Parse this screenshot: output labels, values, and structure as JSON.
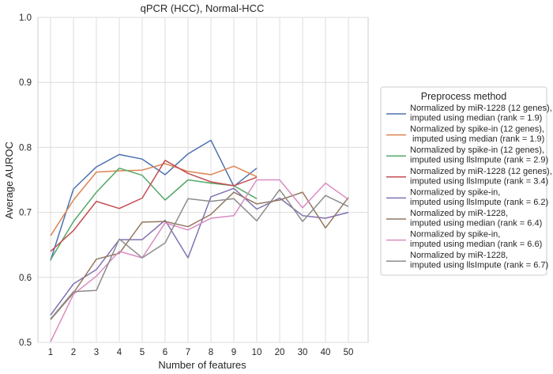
{
  "chart_data": {
    "type": "line",
    "title": "qPCR (HCC), Normal-HCC",
    "xlabel": "Number of features",
    "ylabel": "Average AUROC",
    "categories": [
      "1",
      "2",
      "3",
      "4",
      "5",
      "6",
      "7",
      "8",
      "9",
      "10",
      "20",
      "30",
      "40",
      "50"
    ],
    "ylim": [
      0.5,
      1.0
    ],
    "yticks": [
      "0.5",
      "0.6",
      "0.7",
      "0.8",
      "0.9",
      "1.0"
    ],
    "grid": true,
    "legend": {
      "title": "Preprocess method",
      "placement": "outside-right"
    },
    "series": [
      {
        "name": "Normalized by miR-1228 (12 genes),\nimputed using median (rank = 1.9)",
        "color": "#4c72b0",
        "values": [
          0.626,
          0.736,
          0.77,
          0.789,
          0.782,
          0.758,
          0.79,
          0.811,
          0.74,
          0.768,
          null,
          null,
          null,
          null
        ]
      },
      {
        "name": "Normalized by spike-in (12 genes),\n imputed using median (rank = 1.9)",
        "color": "#dd8452",
        "values": [
          0.664,
          0.719,
          0.762,
          0.764,
          0.765,
          0.775,
          0.763,
          0.758,
          0.771,
          0.755,
          null,
          null,
          null,
          null
        ]
      },
      {
        "name": "Normalized by spike-in (12 genes),\nimputed using llsImpute (rank = 2.9)",
        "color": "#55a868",
        "values": [
          0.627,
          0.686,
          0.731,
          0.768,
          0.757,
          0.719,
          0.75,
          0.745,
          0.741,
          0.721,
          null,
          null,
          null,
          null
        ]
      },
      {
        "name": "Normalized by miR-1228 (12 genes),\nimputed using llsImpute (rank = 3.4)",
        "color": "#c44e52",
        "values": [
          0.64,
          0.672,
          0.717,
          0.706,
          0.722,
          0.78,
          0.76,
          0.747,
          0.741,
          0.754,
          null,
          null,
          null,
          null
        ]
      },
      {
        "name": "Normalized by spike-in,\nimputed using llsImpute (rank = 6.2)",
        "color": "#8172b3",
        "values": [
          0.542,
          0.59,
          0.612,
          0.658,
          0.658,
          0.688,
          0.63,
          0.724,
          0.737,
          0.705,
          0.722,
          0.695,
          0.691,
          0.7
        ]
      },
      {
        "name": "Normalized by miR-1228,\nimputed using median (rank = 6.4)",
        "color": "#937860",
        "values": [
          0.535,
          0.576,
          0.628,
          0.637,
          0.685,
          0.686,
          0.678,
          0.697,
          0.731,
          0.713,
          0.719,
          0.731,
          0.676,
          0.723
        ]
      },
      {
        "name": "Normalized by spike-in,\nimputed using median (rank = 6.6)",
        "color": "#da8bc3",
        "values": [
          0.501,
          0.574,
          0.602,
          0.64,
          0.63,
          0.684,
          0.673,
          0.691,
          0.695,
          0.75,
          0.75,
          0.707,
          0.745,
          0.72
        ]
      },
      {
        "name": "Normalized by miR-1228,\nimputed using llsImpute (rank = 6.7)",
        "color": "#8c8c8c",
        "values": [
          0.536,
          0.578,
          0.58,
          0.659,
          0.63,
          0.653,
          0.721,
          0.717,
          0.721,
          0.687,
          0.735,
          0.686,
          0.726,
          0.709
        ]
      }
    ]
  }
}
